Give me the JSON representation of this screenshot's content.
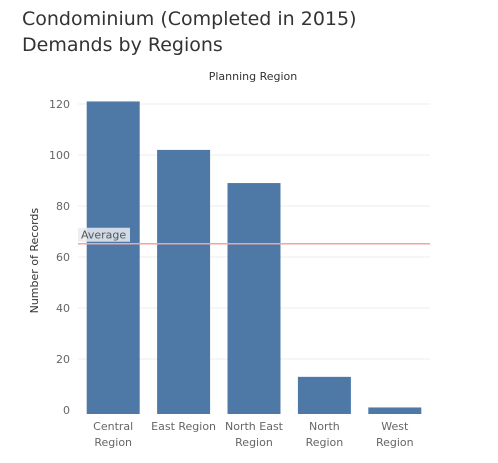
{
  "title_lines": [
    "Condominium (Completed in 2015)",
    "Demands by Regions"
  ],
  "chart_data": {
    "type": "bar",
    "column_header": "Planning Region",
    "ylabel": "Number of Records",
    "xlabel": "",
    "categories": [
      [
        "Central",
        "Region"
      ],
      [
        "East Region"
      ],
      [
        "North East",
        "Region"
      ],
      [
        "North",
        "Region"
      ],
      [
        "West",
        "Region"
      ]
    ],
    "values": [
      121,
      102,
      89,
      13,
      1
    ],
    "ylim": [
      0,
      125
    ],
    "yticks": [
      0,
      20,
      40,
      60,
      80,
      100,
      120
    ],
    "reference_line": {
      "label": "Average",
      "value": 65.2,
      "color": "#f4a3a3"
    },
    "bar_color": "#4e79a7",
    "grid": true
  }
}
